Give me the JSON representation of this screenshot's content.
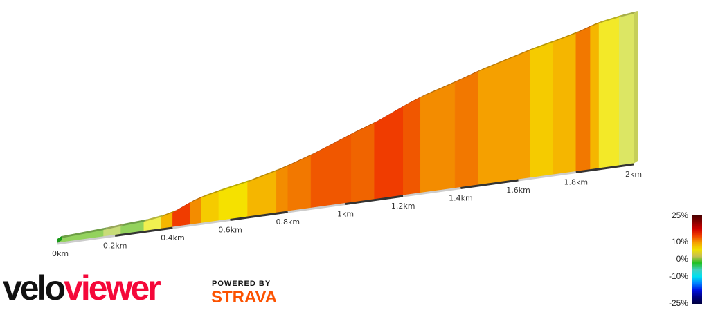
{
  "chart_data": {
    "type": "area",
    "subtype": "3d-elevation-profile",
    "x_unit": "km",
    "x_ticks": [
      "0km",
      "0.2km",
      "0.4km",
      "0.6km",
      "0.8km",
      "1km",
      "1.2km",
      "1.4km",
      "1.6km",
      "1.8km",
      "2km"
    ],
    "xlim": [
      0,
      2
    ],
    "segments": [
      [
        0,
        0.16,
        2
      ],
      [
        0.16,
        0.22,
        3
      ],
      [
        0.22,
        0.3,
        2
      ],
      [
        0.3,
        0.36,
        5
      ],
      [
        0.36,
        0.4,
        9
      ],
      [
        0.4,
        0.46,
        16
      ],
      [
        0.46,
        0.5,
        11
      ],
      [
        0.5,
        0.56,
        8
      ],
      [
        0.56,
        0.66,
        7
      ],
      [
        0.66,
        0.76,
        9
      ],
      [
        0.76,
        0.8,
        11
      ],
      [
        0.8,
        0.88,
        12
      ],
      [
        0.88,
        1.02,
        14
      ],
      [
        1.02,
        1.1,
        13
      ],
      [
        1.1,
        1.2,
        16
      ],
      [
        1.2,
        1.26,
        14
      ],
      [
        1.26,
        1.38,
        11
      ],
      [
        1.38,
        1.46,
        12
      ],
      [
        1.46,
        1.64,
        10
      ],
      [
        1.64,
        1.72,
        8
      ],
      [
        1.72,
        1.8,
        9
      ],
      [
        1.8,
        1.85,
        12
      ],
      [
        1.85,
        1.88,
        9
      ],
      [
        1.88,
        1.95,
        6
      ],
      [
        1.95,
        2.0,
        4
      ]
    ],
    "segment_fields": [
      "start_km",
      "end_km",
      "gradient_percent"
    ],
    "legend": {
      "labels": [
        "25%",
        "10%",
        "0%",
        "-10%",
        "-25%"
      ],
      "range": [
        -25,
        25
      ],
      "placement": "bottom-right"
    }
  },
  "branding": {
    "logo_a": "velo",
    "logo_b": "viewer",
    "powered_by": "POWERED BY",
    "strava": "STRAVA"
  }
}
